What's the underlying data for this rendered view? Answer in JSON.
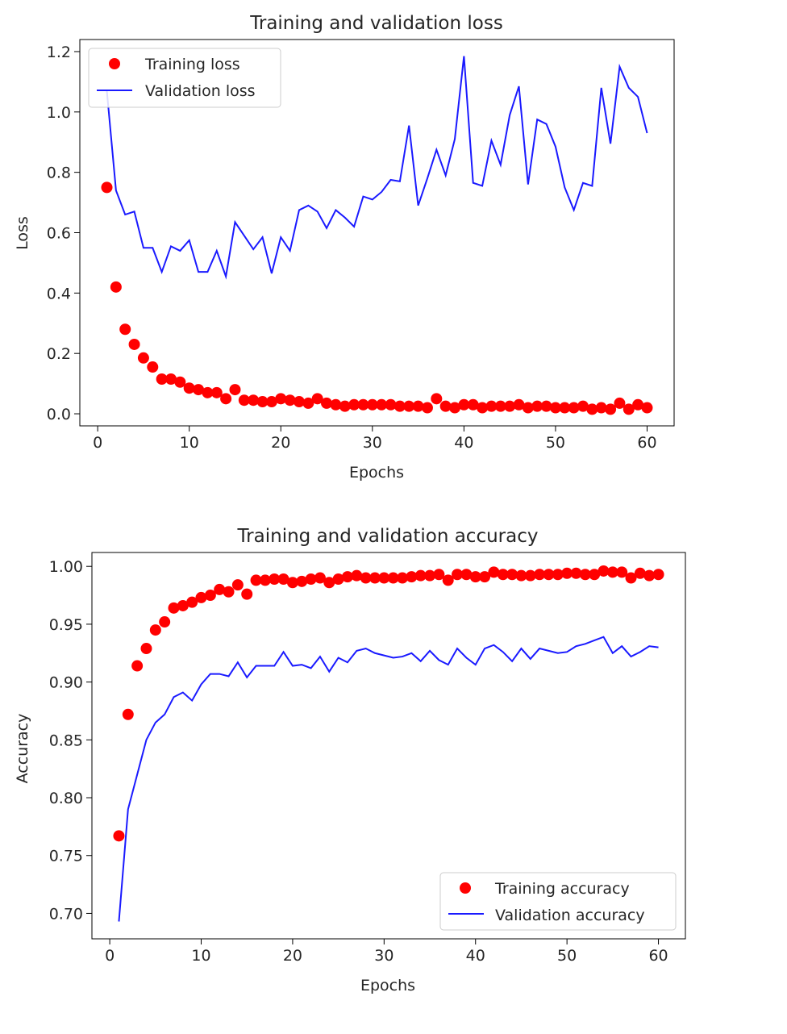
{
  "chart_data": [
    {
      "type": "line",
      "title": "Training and validation loss",
      "xlabel": "Epochs",
      "ylabel": "Loss",
      "xlim": [
        -1.95,
        62.95
      ],
      "ylim": [
        -0.04,
        1.24
      ],
      "xticks": [
        0,
        10,
        20,
        30,
        40,
        50,
        60
      ],
      "yticks": [
        0.0,
        0.2,
        0.4,
        0.6,
        0.8,
        1.0,
        1.2
      ],
      "ytick_labels": [
        "0.0",
        "0.2",
        "0.4",
        "0.6",
        "0.8",
        "1.0",
        "1.2"
      ],
      "legend_position": "top-left",
      "grid": false,
      "x": [
        1,
        2,
        3,
        4,
        5,
        6,
        7,
        8,
        9,
        10,
        11,
        12,
        13,
        14,
        15,
        16,
        17,
        18,
        19,
        20,
        21,
        22,
        23,
        24,
        25,
        26,
        27,
        28,
        29,
        30,
        31,
        32,
        33,
        34,
        35,
        36,
        37,
        38,
        39,
        40,
        41,
        42,
        43,
        44,
        45,
        46,
        47,
        48,
        49,
        50,
        51,
        52,
        53,
        54,
        55,
        56,
        57,
        58,
        59,
        60
      ],
      "series": [
        {
          "name": "Training loss",
          "style": "markers",
          "color": "#ff0000",
          "values": [
            0.75,
            0.42,
            0.28,
            0.23,
            0.185,
            0.155,
            0.115,
            0.115,
            0.105,
            0.085,
            0.08,
            0.07,
            0.07,
            0.05,
            0.08,
            0.045,
            0.045,
            0.04,
            0.04,
            0.05,
            0.045,
            0.04,
            0.035,
            0.05,
            0.035,
            0.03,
            0.025,
            0.03,
            0.03,
            0.03,
            0.03,
            0.03,
            0.025,
            0.025,
            0.025,
            0.02,
            0.05,
            0.025,
            0.02,
            0.03,
            0.03,
            0.02,
            0.025,
            0.025,
            0.025,
            0.03,
            0.02,
            0.025,
            0.025,
            0.02,
            0.02,
            0.02,
            0.025,
            0.015,
            0.02,
            0.015,
            0.035,
            0.015,
            0.03,
            0.02
          ]
        },
        {
          "name": "Validation loss",
          "style": "line",
          "color": "#1a1aff",
          "values": [
            1.07,
            0.74,
            0.66,
            0.67,
            0.55,
            0.55,
            0.47,
            0.555,
            0.54,
            0.575,
            0.47,
            0.47,
            0.54,
            0.455,
            0.635,
            0.59,
            0.545,
            0.585,
            0.465,
            0.585,
            0.54,
            0.675,
            0.69,
            0.67,
            0.615,
            0.675,
            0.65,
            0.62,
            0.72,
            0.71,
            0.735,
            0.775,
            0.77,
            0.955,
            0.69,
            0.78,
            0.875,
            0.79,
            0.91,
            1.185,
            0.765,
            0.755,
            0.905,
            0.825,
            0.99,
            1.085,
            0.76,
            0.975,
            0.96,
            0.885,
            0.75,
            0.675,
            0.765,
            0.755,
            1.08,
            0.895,
            1.15,
            1.08,
            1.05,
            0.93
          ]
        }
      ]
    },
    {
      "type": "line",
      "title": "Training and validation accuracy",
      "xlabel": "Epochs",
      "ylabel": "Accuracy",
      "xlim": [
        -1.95,
        62.95
      ],
      "ylim": [
        0.678,
        1.012
      ],
      "xticks": [
        0,
        10,
        20,
        30,
        40,
        50,
        60
      ],
      "yticks": [
        0.7,
        0.75,
        0.8,
        0.85,
        0.9,
        0.95,
        1.0
      ],
      "ytick_labels": [
        "0.70",
        "0.75",
        "0.80",
        "0.85",
        "0.90",
        "0.95",
        "1.00"
      ],
      "legend_position": "bottom-right",
      "grid": false,
      "x": [
        1,
        2,
        3,
        4,
        5,
        6,
        7,
        8,
        9,
        10,
        11,
        12,
        13,
        14,
        15,
        16,
        17,
        18,
        19,
        20,
        21,
        22,
        23,
        24,
        25,
        26,
        27,
        28,
        29,
        30,
        31,
        32,
        33,
        34,
        35,
        36,
        37,
        38,
        39,
        40,
        41,
        42,
        43,
        44,
        45,
        46,
        47,
        48,
        49,
        50,
        51,
        52,
        53,
        54,
        55,
        56,
        57,
        58,
        59,
        60
      ],
      "series": [
        {
          "name": "Training accuracy",
          "style": "markers",
          "color": "#ff0000",
          "values": [
            0.767,
            0.872,
            0.914,
            0.929,
            0.945,
            0.952,
            0.964,
            0.966,
            0.969,
            0.973,
            0.975,
            0.98,
            0.978,
            0.984,
            0.976,
            0.988,
            0.988,
            0.989,
            0.989,
            0.986,
            0.987,
            0.989,
            0.99,
            0.986,
            0.989,
            0.991,
            0.992,
            0.99,
            0.99,
            0.99,
            0.99,
            0.99,
            0.991,
            0.992,
            0.992,
            0.993,
            0.988,
            0.993,
            0.993,
            0.991,
            0.991,
            0.995,
            0.993,
            0.993,
            0.992,
            0.992,
            0.993,
            0.993,
            0.993,
            0.994,
            0.994,
            0.993,
            0.993,
            0.996,
            0.995,
            0.995,
            0.99,
            0.994,
            0.992,
            0.993
          ]
        },
        {
          "name": "Validation accuracy",
          "style": "line",
          "color": "#1a1aff",
          "values": [
            0.693,
            0.79,
            0.82,
            0.85,
            0.865,
            0.872,
            0.887,
            0.891,
            0.884,
            0.898,
            0.907,
            0.907,
            0.905,
            0.917,
            0.904,
            0.914,
            0.914,
            0.914,
            0.926,
            0.914,
            0.915,
            0.912,
            0.922,
            0.909,
            0.921,
            0.917,
            0.927,
            0.929,
            0.925,
            0.923,
            0.921,
            0.922,
            0.925,
            0.918,
            0.927,
            0.919,
            0.915,
            0.929,
            0.921,
            0.915,
            0.929,
            0.932,
            0.926,
            0.918,
            0.929,
            0.92,
            0.929,
            0.927,
            0.925,
            0.926,
            0.931,
            0.933,
            0.936,
            0.939,
            0.925,
            0.931,
            0.922,
            0.926,
            0.931,
            0.93
          ]
        }
      ]
    }
  ]
}
